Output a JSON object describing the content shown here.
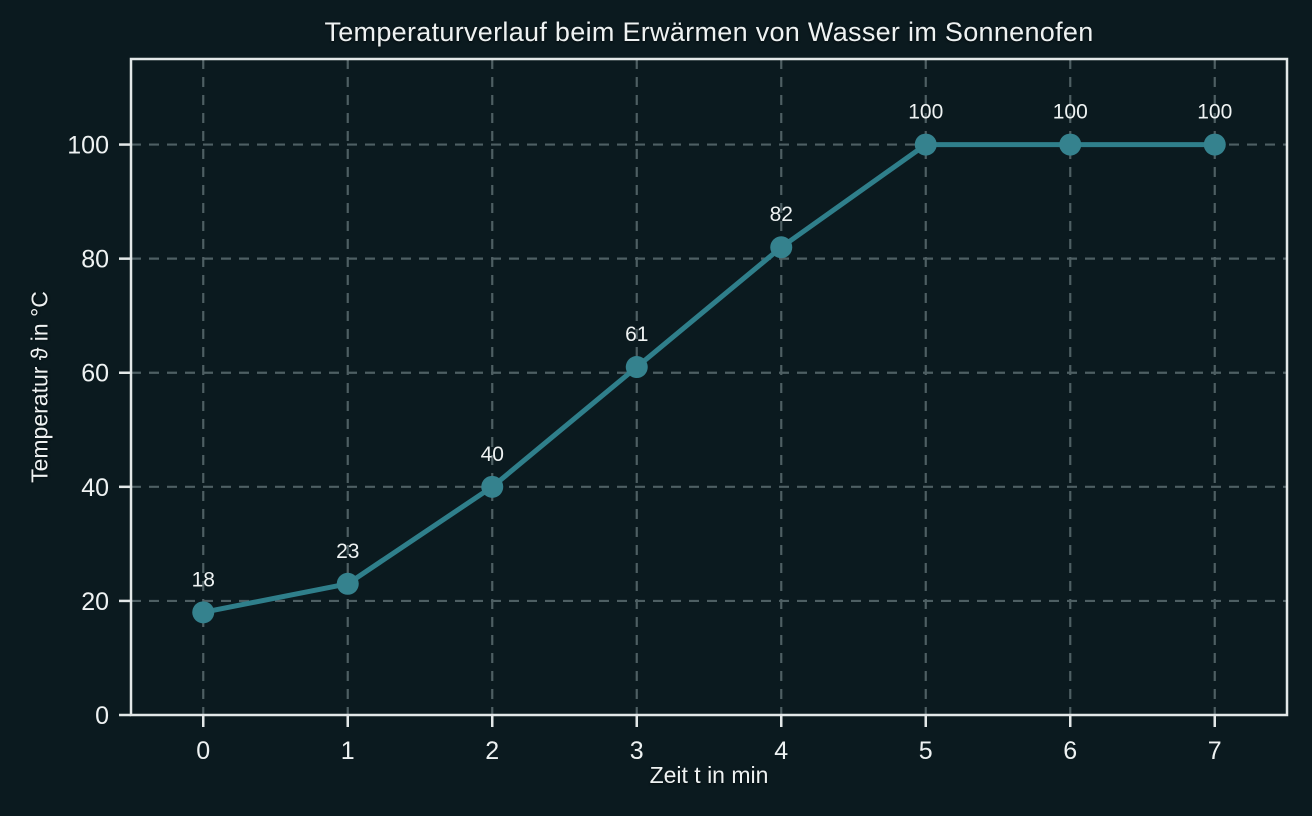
{
  "chart_data": {
    "type": "line",
    "title": "Temperaturverlauf beim Erwärmen von Wasser im Sonnenofen",
    "xlabel": "Zeit t in min",
    "ylabel": "Temperatur ϑ in °C",
    "x": [
      0,
      1,
      2,
      3,
      4,
      5,
      6,
      7
    ],
    "series": [
      {
        "name": "Temperatur",
        "values": [
          18,
          23,
          40,
          61,
          82,
          100,
          100,
          100
        ],
        "point_labels": [
          "18",
          "23",
          "40",
          "61",
          "82",
          "100",
          "100",
          "100"
        ]
      }
    ],
    "x_ticks": [
      "0",
      "1",
      "2",
      "3",
      "4",
      "5",
      "6",
      "7"
    ],
    "y_ticks": [
      "0",
      "20",
      "40",
      "60",
      "80",
      "100"
    ],
    "x_tick_values": [
      0,
      1,
      2,
      3,
      4,
      5,
      6,
      7
    ],
    "y_tick_values": [
      0,
      20,
      40,
      60,
      80,
      100
    ],
    "xlim": [
      -0.5,
      7.5
    ],
    "ylim": [
      0,
      115
    ],
    "grid": true,
    "grid_style": "dashed",
    "legend": "none",
    "colors": {
      "background": "#0b1a1f",
      "line": "#2f7f8b",
      "marker": "#35828e",
      "frame": "#e3e8e8",
      "grid": "#4e5f63",
      "text": "#eef2f2"
    }
  }
}
